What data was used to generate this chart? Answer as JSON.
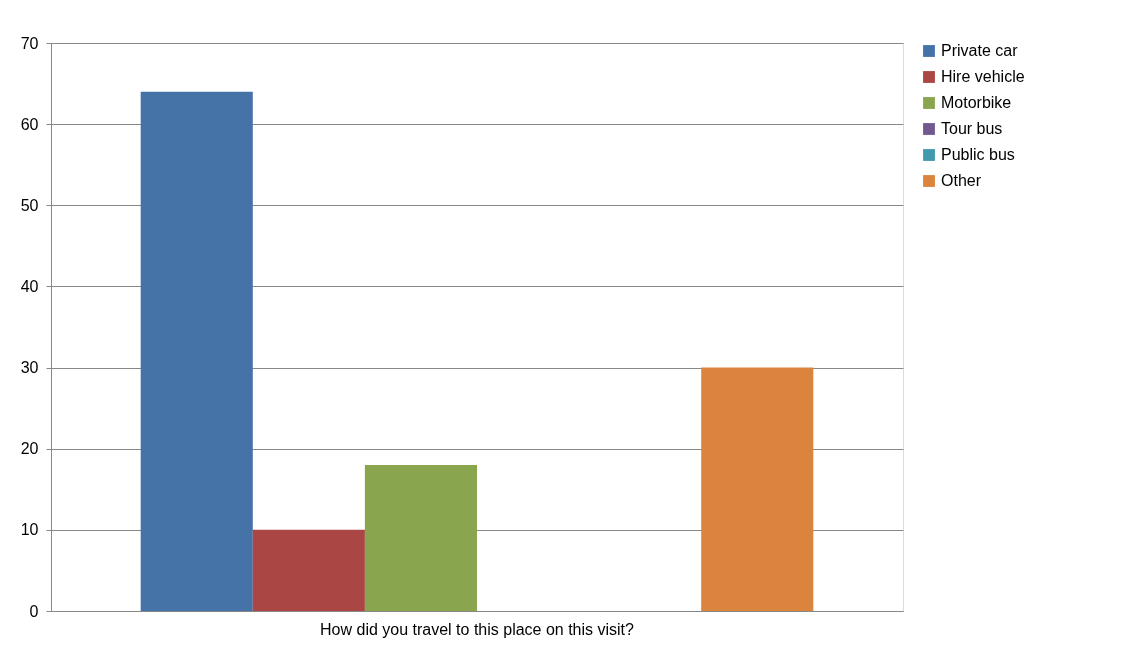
{
  "chart_data": {
    "type": "bar",
    "categories": [
      "How did you travel to this place on this visit?"
    ],
    "series": [
      {
        "name": "Private car",
        "color": "#4572a7",
        "values": [
          64
        ]
      },
      {
        "name": "Hire vehicle",
        "color": "#aa4643",
        "values": [
          10
        ]
      },
      {
        "name": "Motorbike",
        "color": "#89a54e",
        "values": [
          18
        ]
      },
      {
        "name": "Tour bus",
        "color": "#71588f",
        "values": [
          0
        ]
      },
      {
        "name": "Public bus",
        "color": "#4198af",
        "values": [
          0
        ]
      },
      {
        "name": "Other",
        "color": "#db843d",
        "values": [
          30
        ]
      }
    ],
    "ylim": [
      0,
      70
    ],
    "yticks": [
      0,
      10,
      20,
      30,
      40,
      50,
      60,
      70
    ],
    "grid": "y",
    "legend": "right"
  }
}
